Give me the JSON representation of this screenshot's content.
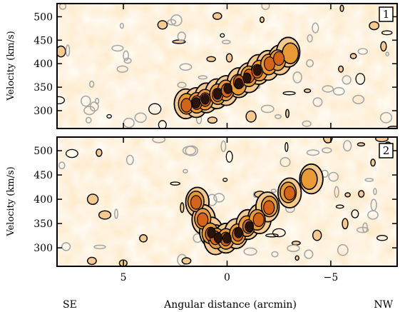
{
  "chart_data": [
    {
      "type": "heatmap",
      "panel_label": "1",
      "ylabel": "Velocity (km/s)",
      "ylim": [
        262,
        528
      ],
      "yticks": [
        300,
        350,
        400,
        450,
        500
      ],
      "xlim": [
        8.2,
        -8.2
      ],
      "grid": false,
      "ridge": {
        "x": [
          2.0,
          1.5,
          1.0,
          0.5,
          0.0,
          -0.5,
          -1.0,
          -1.5,
          -2.0,
          -2.5,
          -3.0
        ],
        "velocity": [
          312,
          318,
          325,
          335,
          345,
          358,
          372,
          385,
          398,
          410,
          425
        ]
      },
      "colors": {
        "faint": "#f5c98f",
        "mid": "#e99a36",
        "strong": "#d4641a",
        "peak": "#2b1305",
        "negative_contour": "#a8a8a8"
      }
    },
    {
      "type": "heatmap",
      "panel_label": "2",
      "ylabel": "Velocity (km/s)",
      "ylim": [
        262,
        528
      ],
      "yticks": [
        300,
        350,
        400,
        450,
        500
      ],
      "xlim": [
        8.2,
        -8.2
      ],
      "xticks": [
        5,
        0,
        -5
      ],
      "xticklabels": [
        "5",
        "0",
        "−5"
      ],
      "xlabel": "Angular distance (arcmin)",
      "direction_labels": {
        "left": "SE",
        "right": "NW"
      },
      "grid": false,
      "ridge": {
        "x": [
          1.5,
          1.2,
          0.8,
          0.5,
          0.0,
          -0.5,
          -1.0,
          -1.5,
          -2.0,
          -3.0,
          -4.0
        ],
        "velocity": [
          395,
          360,
          330,
          318,
          318,
          330,
          345,
          360,
          385,
          415,
          440
        ]
      },
      "colors": {
        "faint": "#f5c98f",
        "mid": "#e99a36",
        "strong": "#d4641a",
        "peak": "#2b1305",
        "negative_contour": "#a8a8a8"
      }
    }
  ]
}
